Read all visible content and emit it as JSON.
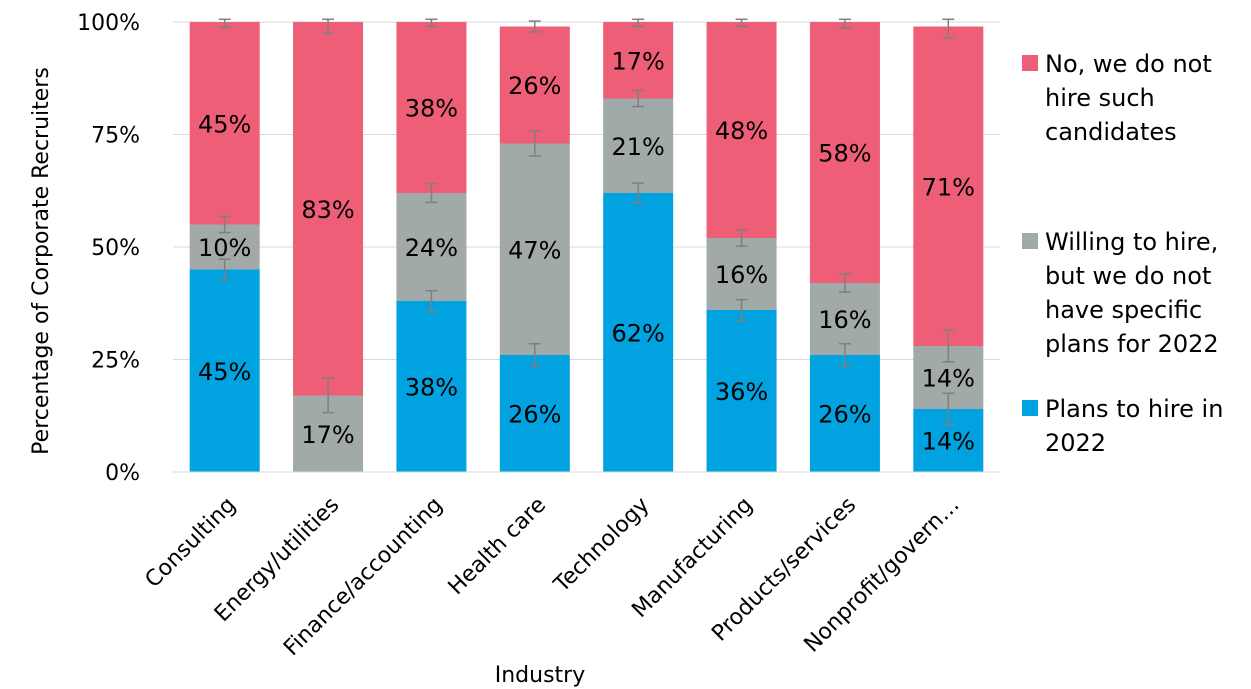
{
  "chart_data": {
    "type": "bar",
    "stacked": true,
    "orientation": "vertical",
    "xlabel": "Industry",
    "ylabel": "Percentage of Corporate Recruiters",
    "ylim": [
      0,
      100
    ],
    "yticks": [
      0,
      25,
      50,
      75,
      100
    ],
    "ytick_labels": [
      "0%",
      "25%",
      "50%",
      "75%",
      "100%"
    ],
    "grid": true,
    "legend_position": "right",
    "categories": [
      "Consulting",
      "Energy/utilities",
      "Finance/accounting",
      "Health care",
      "Technology",
      "Manufacturing",
      "Products/services",
      "Nonprofit/govern…"
    ],
    "series": [
      {
        "name": "Plans to hire in 2022",
        "color": "#00a2e0",
        "values": [
          45,
          0,
          38,
          26,
          62,
          36,
          26,
          14
        ],
        "labels": [
          "45%",
          "",
          "38%",
          "26%",
          "62%",
          "36%",
          "26%",
          "14%"
        ],
        "error": [
          2.3,
          0,
          2.3,
          2.5,
          2.2,
          2.3,
          2.5,
          3.5
        ]
      },
      {
        "name": "Willing to hire, but we do not have specific plans for 2022",
        "color": "#a1a9a9",
        "values": [
          10,
          17,
          24,
          47,
          21,
          16,
          16,
          14
        ],
        "labels": [
          "10%",
          "17%",
          "24%",
          "47%",
          "21%",
          "16%",
          "16%",
          "14%"
        ],
        "error": [
          1.8,
          3.8,
          2.1,
          2.8,
          1.8,
          1.8,
          2.0,
          3.5
        ]
      },
      {
        "name": "No, we do not hire such candidates",
        "color": "#ee5f77",
        "values": [
          45,
          83,
          38,
          26,
          17,
          48,
          58,
          71
        ],
        "labels": [
          "45%",
          "83%",
          "38%",
          "26%",
          "17%",
          "48%",
          "58%",
          "71%"
        ],
        "error": [
          1.2,
          2.5,
          1.0,
          1.2,
          1.0,
          1.0,
          1.3,
          2.5
        ]
      }
    ]
  },
  "legend": {
    "no_lines": [
      "No, we do not",
      "hire such",
      "candidates"
    ],
    "willing_lines": [
      "Willing to hire,",
      "but we do not",
      "have specific",
      "plans for 2022"
    ],
    "plans_lines": [
      "Plans to hire in",
      "2022"
    ]
  }
}
